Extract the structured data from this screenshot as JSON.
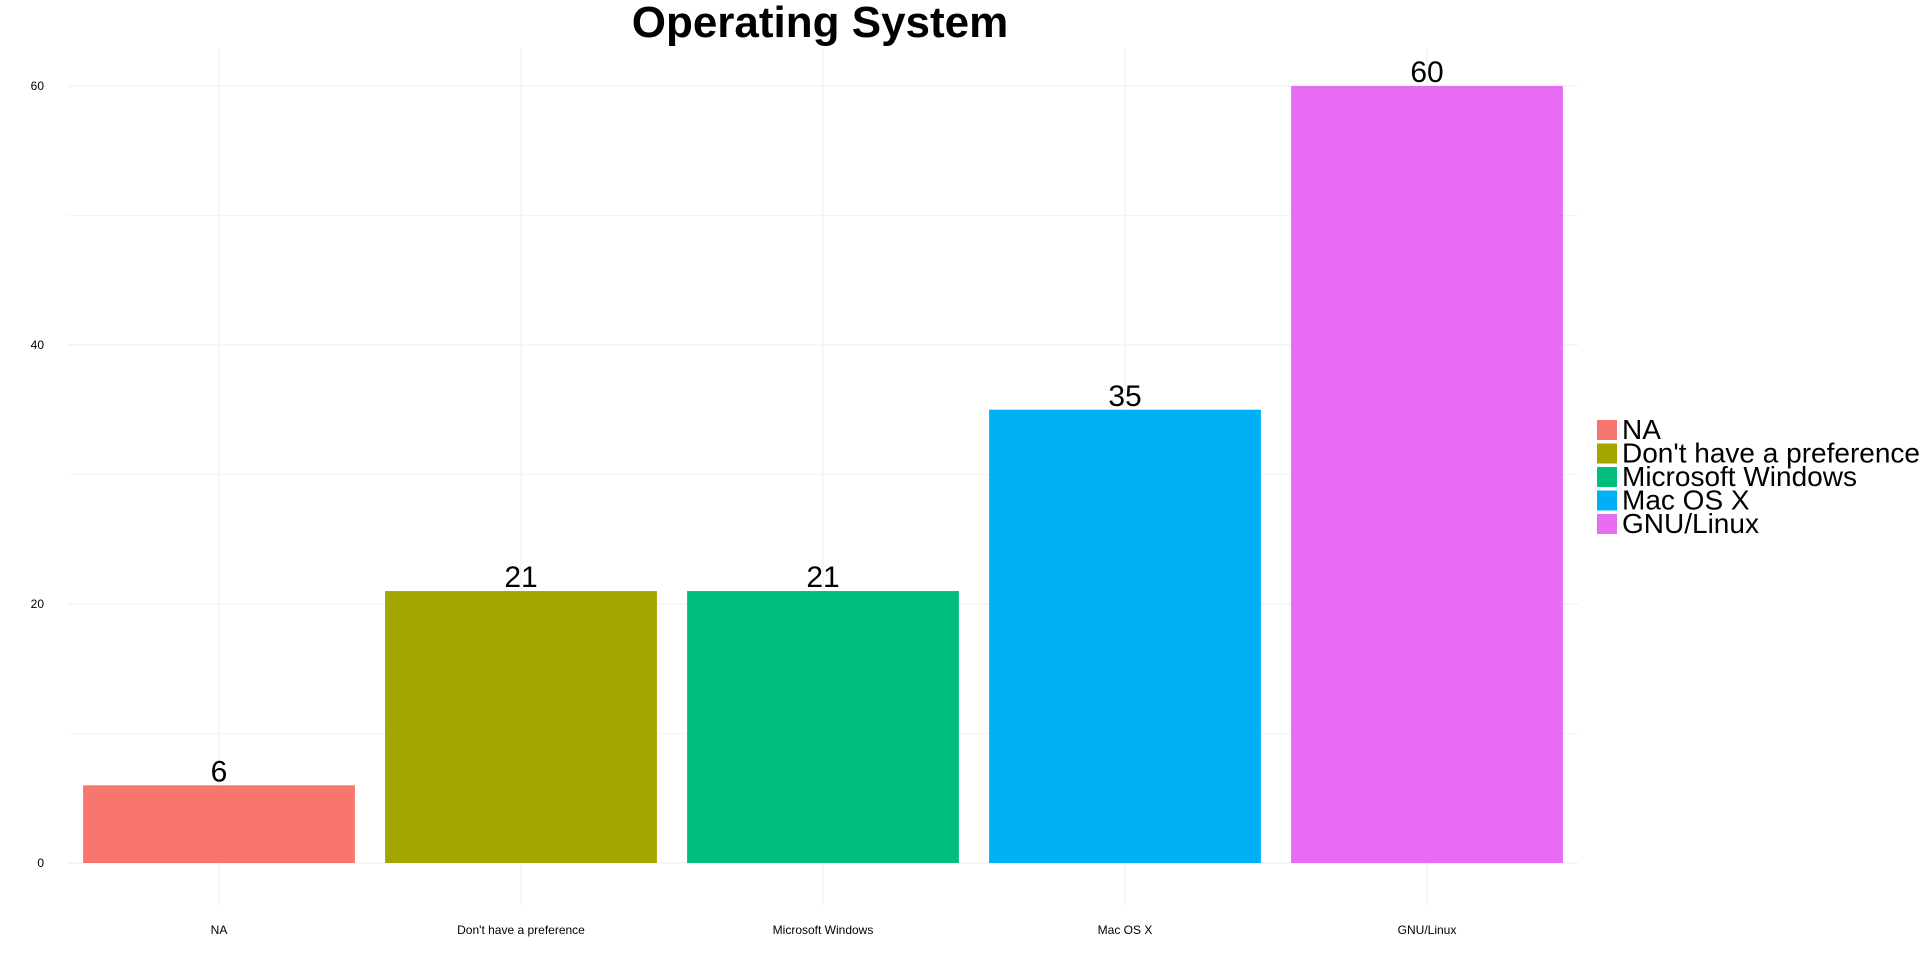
{
  "chart_data": {
    "type": "bar",
    "title": "Operating System",
    "xlabel": "",
    "ylabel": "",
    "categories": [
      "NA",
      "Don't have a preference",
      "Microsoft Windows",
      "Mac OS X",
      "GNU/Linux"
    ],
    "values": [
      6,
      21,
      21,
      35,
      60
    ],
    "colors": [
      "#F8766D",
      "#A3A500",
      "#00BF7D",
      "#00B0F6",
      "#E76BF3"
    ],
    "ylim": [
      0,
      63
    ],
    "yticks": [
      0,
      20,
      40,
      60
    ],
    "grid": true,
    "legend": {
      "placement": "right",
      "entries": [
        "NA",
        "Don't have a preference",
        "Microsoft Windows",
        "Mac OS X",
        "GNU/Linux"
      ]
    },
    "data_labels": [
      "6",
      "21",
      "21",
      "35",
      "60"
    ]
  }
}
